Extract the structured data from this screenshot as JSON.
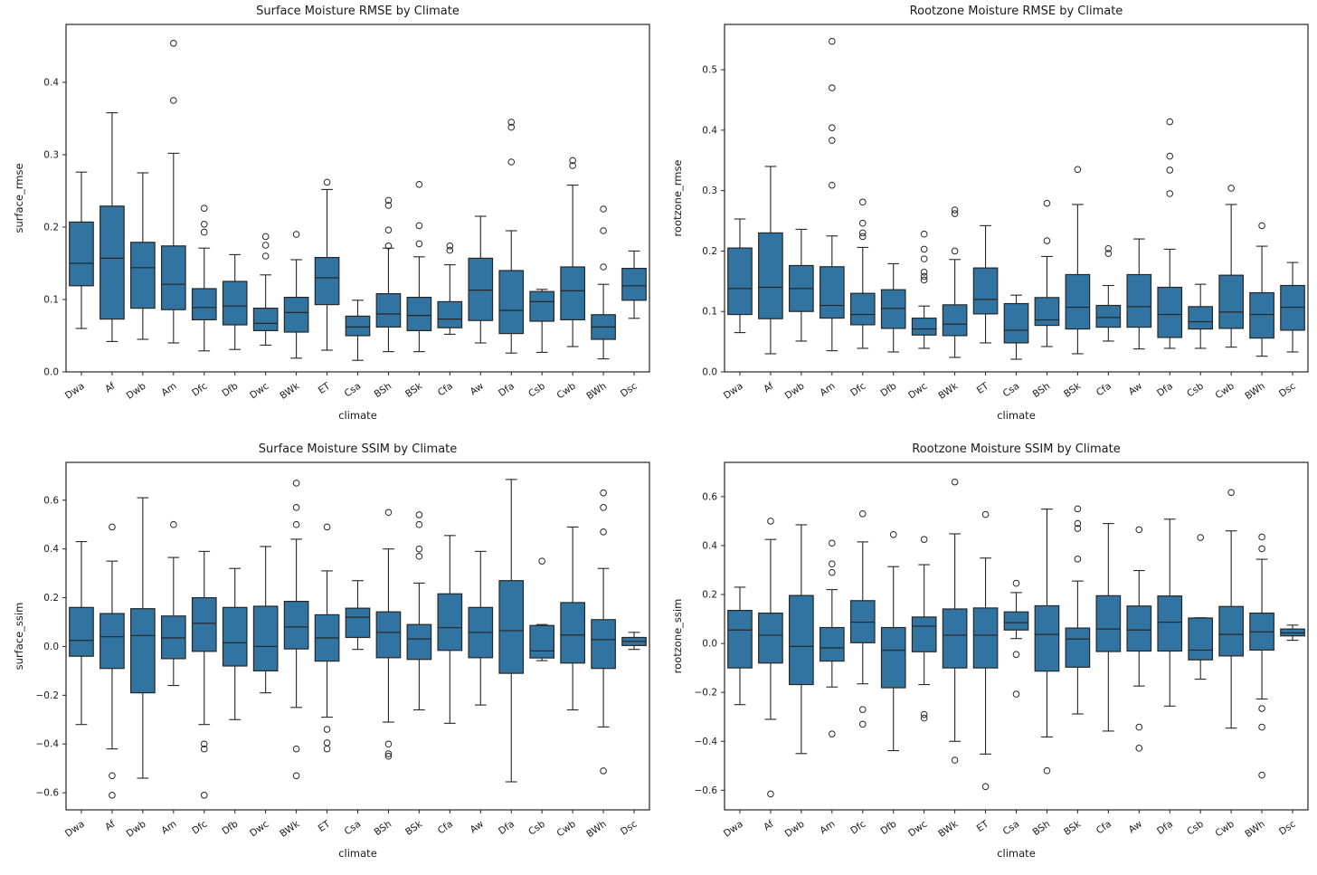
{
  "figure": {
    "background": "#ffffff",
    "box_fill": "#3274a1",
    "line_color": "#262626",
    "text_color": "#1a1a1a"
  },
  "chart_data": [
    {
      "type": "boxplot",
      "title": "Surface Moisture RMSE by Climate",
      "xlabel": "climate",
      "ylabel": "surface_rmse",
      "legend_position": "none",
      "grid": false,
      "categories": [
        "Dwa",
        "Af",
        "Dwb",
        "Am",
        "Dfc",
        "Dfb",
        "Dwc",
        "BWk",
        "ET",
        "Csa",
        "BSh",
        "BSk",
        "Cfa",
        "Aw",
        "Dfa",
        "Csb",
        "Cwb",
        "BWh",
        "Dsc"
      ],
      "ylim": [
        0,
        0.48
      ],
      "yticks": [
        0.0,
        0.1,
        0.2,
        0.3,
        0.4
      ],
      "ytick_labels": [
        "0.0",
        "0.1",
        "0.2",
        "0.3",
        "0.4"
      ],
      "boxes": [
        {
          "whislo": 0.06,
          "q1": 0.119,
          "med": 0.15,
          "q3": 0.207,
          "whishi": 0.276,
          "outliers": []
        },
        {
          "whislo": 0.042,
          "q1": 0.073,
          "med": 0.157,
          "q3": 0.229,
          "whishi": 0.358,
          "outliers": []
        },
        {
          "whislo": 0.045,
          "q1": 0.088,
          "med": 0.144,
          "q3": 0.179,
          "whishi": 0.275,
          "outliers": []
        },
        {
          "whislo": 0.04,
          "q1": 0.086,
          "med": 0.121,
          "q3": 0.174,
          "whishi": 0.302,
          "outliers": [
            0.375,
            0.454
          ]
        },
        {
          "whislo": 0.029,
          "q1": 0.072,
          "med": 0.089,
          "q3": 0.115,
          "whishi": 0.171,
          "outliers": [
            0.193,
            0.204,
            0.226
          ]
        },
        {
          "whislo": 0.031,
          "q1": 0.065,
          "med": 0.091,
          "q3": 0.125,
          "whishi": 0.162,
          "outliers": []
        },
        {
          "whislo": 0.037,
          "q1": 0.057,
          "med": 0.067,
          "q3": 0.088,
          "whishi": 0.134,
          "outliers": [
            0.16,
            0.175,
            0.187
          ]
        },
        {
          "whislo": 0.019,
          "q1": 0.055,
          "med": 0.082,
          "q3": 0.103,
          "whishi": 0.155,
          "outliers": [
            0.19
          ]
        },
        {
          "whislo": 0.03,
          "q1": 0.093,
          "med": 0.13,
          "q3": 0.158,
          "whishi": 0.252,
          "outliers": [
            0.262
          ]
        },
        {
          "whislo": 0.016,
          "q1": 0.05,
          "med": 0.062,
          "q3": 0.077,
          "whishi": 0.099,
          "outliers": []
        },
        {
          "whislo": 0.028,
          "q1": 0.062,
          "med": 0.08,
          "q3": 0.108,
          "whishi": 0.171,
          "outliers": [
            0.174,
            0.196,
            0.23,
            0.237
          ]
        },
        {
          "whislo": 0.028,
          "q1": 0.057,
          "med": 0.078,
          "q3": 0.103,
          "whishi": 0.159,
          "outliers": [
            0.177,
            0.202,
            0.259
          ]
        },
        {
          "whislo": 0.052,
          "q1": 0.061,
          "med": 0.073,
          "q3": 0.097,
          "whishi": 0.148,
          "outliers": [
            0.168,
            0.174
          ]
        },
        {
          "whislo": 0.04,
          "q1": 0.071,
          "med": 0.113,
          "q3": 0.157,
          "whishi": 0.215,
          "outliers": []
        },
        {
          "whislo": 0.026,
          "q1": 0.053,
          "med": 0.085,
          "q3": 0.14,
          "whishi": 0.195,
          "outliers": [
            0.29,
            0.338,
            0.345
          ]
        },
        {
          "whislo": 0.027,
          "q1": 0.07,
          "med": 0.097,
          "q3": 0.111,
          "whishi": 0.114,
          "outliers": []
        },
        {
          "whislo": 0.035,
          "q1": 0.072,
          "med": 0.112,
          "q3": 0.145,
          "whishi": 0.258,
          "outliers": [
            0.285,
            0.292
          ]
        },
        {
          "whislo": 0.018,
          "q1": 0.045,
          "med": 0.062,
          "q3": 0.079,
          "whishi": 0.121,
          "outliers": [
            0.145,
            0.195,
            0.225
          ]
        },
        {
          "whislo": 0.074,
          "q1": 0.099,
          "med": 0.119,
          "q3": 0.143,
          "whishi": 0.167,
          "outliers": []
        }
      ]
    },
    {
      "type": "boxplot",
      "title": "Rootzone Moisture RMSE by Climate",
      "xlabel": "climate",
      "ylabel": "rootzone_rmse",
      "legend_position": "none",
      "grid": false,
      "categories": [
        "Dwa",
        "Af",
        "Dwb",
        "Am",
        "Dfc",
        "Dfb",
        "Dwc",
        "BWk",
        "ET",
        "Csa",
        "BSh",
        "BSk",
        "Cfa",
        "Aw",
        "Dfa",
        "Csb",
        "Cwb",
        "BWh",
        "Dsc"
      ],
      "ylim": [
        0,
        0.575
      ],
      "yticks": [
        0.0,
        0.1,
        0.2,
        0.3,
        0.4,
        0.5
      ],
      "ytick_labels": [
        "0.0",
        "0.1",
        "0.2",
        "0.3",
        "0.4",
        "0.5"
      ],
      "boxes": [
        {
          "whislo": 0.065,
          "q1": 0.095,
          "med": 0.138,
          "q3": 0.205,
          "whishi": 0.253,
          "outliers": []
        },
        {
          "whislo": 0.03,
          "q1": 0.088,
          "med": 0.14,
          "q3": 0.23,
          "whishi": 0.34,
          "outliers": []
        },
        {
          "whislo": 0.051,
          "q1": 0.1,
          "med": 0.138,
          "q3": 0.176,
          "whishi": 0.236,
          "outliers": []
        },
        {
          "whislo": 0.035,
          "q1": 0.089,
          "med": 0.11,
          "q3": 0.174,
          "whishi": 0.225,
          "outliers": [
            0.309,
            0.383,
            0.404,
            0.47,
            0.547
          ]
        },
        {
          "whislo": 0.039,
          "q1": 0.078,
          "med": 0.095,
          "q3": 0.13,
          "whishi": 0.206,
          "outliers": [
            0.224,
            0.23,
            0.246,
            0.281
          ]
        },
        {
          "whislo": 0.033,
          "q1": 0.072,
          "med": 0.105,
          "q3": 0.136,
          "whishi": 0.179,
          "outliers": []
        },
        {
          "whislo": 0.039,
          "q1": 0.061,
          "med": 0.071,
          "q3": 0.089,
          "whishi": 0.109,
          "outliers": [
            0.152,
            0.158,
            0.165,
            0.187,
            0.203,
            0.228
          ]
        },
        {
          "whislo": 0.024,
          "q1": 0.06,
          "med": 0.079,
          "q3": 0.111,
          "whishi": 0.186,
          "outliers": [
            0.2,
            0.262,
            0.268
          ]
        },
        {
          "whislo": 0.048,
          "q1": 0.096,
          "med": 0.12,
          "q3": 0.172,
          "whishi": 0.242,
          "outliers": []
        },
        {
          "whislo": 0.021,
          "q1": 0.048,
          "med": 0.069,
          "q3": 0.113,
          "whishi": 0.127,
          "outliers": []
        },
        {
          "whislo": 0.042,
          "q1": 0.077,
          "med": 0.086,
          "q3": 0.123,
          "whishi": 0.191,
          "outliers": [
            0.217,
            0.279
          ]
        },
        {
          "whislo": 0.03,
          "q1": 0.071,
          "med": 0.107,
          "q3": 0.161,
          "whishi": 0.277,
          "outliers": [
            0.335
          ]
        },
        {
          "whislo": 0.051,
          "q1": 0.074,
          "med": 0.09,
          "q3": 0.11,
          "whishi": 0.143,
          "outliers": [
            0.196,
            0.204
          ]
        },
        {
          "whislo": 0.038,
          "q1": 0.074,
          "med": 0.108,
          "q3": 0.161,
          "whishi": 0.22,
          "outliers": []
        },
        {
          "whislo": 0.039,
          "q1": 0.057,
          "med": 0.095,
          "q3": 0.14,
          "whishi": 0.203,
          "outliers": [
            0.295,
            0.334,
            0.357,
            0.414
          ]
        },
        {
          "whislo": 0.039,
          "q1": 0.071,
          "med": 0.083,
          "q3": 0.108,
          "whishi": 0.145,
          "outliers": []
        },
        {
          "whislo": 0.041,
          "q1": 0.072,
          "med": 0.099,
          "q3": 0.16,
          "whishi": 0.277,
          "outliers": [
            0.304
          ]
        },
        {
          "whislo": 0.026,
          "q1": 0.056,
          "med": 0.095,
          "q3": 0.131,
          "whishi": 0.208,
          "outliers": [
            0.242
          ]
        },
        {
          "whislo": 0.033,
          "q1": 0.069,
          "med": 0.107,
          "q3": 0.143,
          "whishi": 0.181,
          "outliers": []
        }
      ]
    },
    {
      "type": "boxplot",
      "title": "Surface Moisture SSIM by Climate",
      "xlabel": "climate",
      "ylabel": "surface_ssim",
      "legend_position": "none",
      "grid": false,
      "categories": [
        "Dwa",
        "Af",
        "Dwb",
        "Am",
        "Dfc",
        "Dfb",
        "Dwc",
        "BWk",
        "ET",
        "Csa",
        "BSh",
        "BSk",
        "Cfa",
        "Aw",
        "Dfa",
        "Csb",
        "Cwb",
        "BWh",
        "Dsc"
      ],
      "ylim": [
        -0.67,
        0.755
      ],
      "yticks": [
        -0.6,
        -0.4,
        -0.2,
        0.0,
        0.2,
        0.4,
        0.6
      ],
      "ytick_labels": [
        "−0.6",
        "−0.4",
        "−0.2",
        "0.0",
        "0.2",
        "0.4",
        "0.6"
      ],
      "boxes": [
        {
          "whislo": -0.32,
          "q1": -0.04,
          "med": 0.025,
          "q3": 0.16,
          "whishi": 0.43,
          "outliers": []
        },
        {
          "whislo": -0.42,
          "q1": -0.09,
          "med": 0.04,
          "q3": 0.135,
          "whishi": 0.35,
          "outliers": [
            0.49,
            -0.53,
            -0.61
          ]
        },
        {
          "whislo": -0.54,
          "q1": -0.19,
          "med": 0.045,
          "q3": 0.155,
          "whishi": 0.61,
          "outliers": []
        },
        {
          "whislo": -0.16,
          "q1": -0.05,
          "med": 0.035,
          "q3": 0.125,
          "whishi": 0.365,
          "outliers": [
            0.5
          ]
        },
        {
          "whislo": -0.32,
          "q1": -0.02,
          "med": 0.095,
          "q3": 0.2,
          "whishi": 0.39,
          "outliers": [
            -0.4,
            -0.42,
            -0.61
          ]
        },
        {
          "whislo": -0.3,
          "q1": -0.08,
          "med": 0.015,
          "q3": 0.16,
          "whishi": 0.32,
          "outliers": []
        },
        {
          "whislo": -0.19,
          "q1": -0.1,
          "med": 0.0,
          "q3": 0.165,
          "whishi": 0.41,
          "outliers": []
        },
        {
          "whislo": -0.25,
          "q1": -0.01,
          "med": 0.08,
          "q3": 0.185,
          "whishi": 0.44,
          "outliers": [
            0.67,
            0.57,
            0.5,
            -0.42,
            -0.53
          ]
        },
        {
          "whislo": -0.29,
          "q1": -0.06,
          "med": 0.035,
          "q3": 0.13,
          "whishi": 0.31,
          "outliers": [
            0.49,
            -0.34,
            -0.395,
            -0.42
          ]
        },
        {
          "whislo": -0.012,
          "q1": 0.037,
          "med": 0.12,
          "q3": 0.157,
          "whishi": 0.27,
          "outliers": []
        },
        {
          "whislo": -0.31,
          "q1": -0.046,
          "med": 0.058,
          "q3": 0.142,
          "whishi": 0.4,
          "outliers": [
            0.55,
            -0.4,
            -0.44,
            -0.45
          ]
        },
        {
          "whislo": -0.26,
          "q1": -0.053,
          "med": 0.031,
          "q3": 0.09,
          "whishi": 0.26,
          "outliers": [
            0.54,
            0.5,
            0.4,
            0.37
          ]
        },
        {
          "whislo": -0.315,
          "q1": -0.016,
          "med": 0.077,
          "q3": 0.216,
          "whishi": 0.455,
          "outliers": []
        },
        {
          "whislo": -0.24,
          "q1": -0.046,
          "med": 0.058,
          "q3": 0.16,
          "whishi": 0.39,
          "outliers": []
        },
        {
          "whislo": -0.555,
          "q1": -0.11,
          "med": 0.065,
          "q3": 0.27,
          "whishi": 0.685,
          "outliers": []
        },
        {
          "whislo": -0.058,
          "q1": -0.047,
          "med": -0.018,
          "q3": 0.086,
          "whishi": 0.09,
          "outliers": [
            0.35
          ]
        },
        {
          "whislo": -0.26,
          "q1": -0.068,
          "med": 0.047,
          "q3": 0.18,
          "whishi": 0.49,
          "outliers": []
        },
        {
          "whislo": -0.33,
          "q1": -0.09,
          "med": 0.028,
          "q3": 0.11,
          "whishi": 0.32,
          "outliers": [
            0.63,
            0.57,
            0.47,
            -0.51
          ]
        },
        {
          "whislo": -0.012,
          "q1": 0.004,
          "med": 0.021,
          "q3": 0.037,
          "whishi": 0.058,
          "outliers": []
        }
      ]
    },
    {
      "type": "boxplot",
      "title": "Rootzone Moisture SSIM by Climate",
      "xlabel": "climate",
      "ylabel": "rootzone_ssim",
      "legend_position": "none",
      "grid": false,
      "categories": [
        "Dwa",
        "Af",
        "Dwb",
        "Am",
        "Dfc",
        "Dfb",
        "Dwc",
        "BWk",
        "ET",
        "Csa",
        "BSh",
        "BSk",
        "Cfa",
        "Aw",
        "Dfa",
        "Csb",
        "Cwb",
        "BWh",
        "Dsc"
      ],
      "ylim": [
        -0.68,
        0.74
      ],
      "yticks": [
        -0.6,
        -0.4,
        -0.2,
        0.0,
        0.2,
        0.4,
        0.6
      ],
      "ytick_labels": [
        "−0.6",
        "−0.4",
        "−0.2",
        "0.0",
        "0.2",
        "0.4",
        "0.6"
      ],
      "boxes": [
        {
          "whislo": -0.25,
          "q1": -0.1,
          "med": 0.055,
          "q3": 0.135,
          "whishi": 0.23,
          "outliers": []
        },
        {
          "whislo": -0.31,
          "q1": -0.08,
          "med": 0.034,
          "q3": 0.124,
          "whishi": 0.425,
          "outliers": [
            0.5,
            -0.615
          ]
        },
        {
          "whislo": -0.45,
          "q1": -0.168,
          "med": -0.012,
          "q3": 0.196,
          "whishi": 0.485,
          "outliers": []
        },
        {
          "whislo": -0.178,
          "q1": -0.072,
          "med": -0.018,
          "q3": 0.065,
          "whishi": 0.22,
          "outliers": [
            0.41,
            0.325,
            0.29,
            -0.37
          ]
        },
        {
          "whislo": -0.165,
          "q1": 0.003,
          "med": 0.087,
          "q3": 0.175,
          "whishi": 0.415,
          "outliers": [
            0.53,
            -0.27,
            -0.33
          ]
        },
        {
          "whislo": -0.438,
          "q1": -0.181,
          "med": -0.028,
          "q3": 0.065,
          "whishi": 0.314,
          "outliers": [
            0.445
          ]
        },
        {
          "whislo": -0.168,
          "q1": -0.034,
          "med": 0.071,
          "q3": 0.108,
          "whishi": 0.322,
          "outliers": [
            0.425,
            -0.29,
            -0.305
          ]
        },
        {
          "whislo": -0.4,
          "q1": -0.1,
          "med": 0.034,
          "q3": 0.141,
          "whishi": 0.448,
          "outliers": [
            0.66,
            -0.477
          ]
        },
        {
          "whislo": -0.452,
          "q1": -0.1,
          "med": 0.034,
          "q3": 0.145,
          "whishi": 0.349,
          "outliers": [
            0.527,
            -0.585
          ]
        },
        {
          "whislo": 0.02,
          "q1": 0.055,
          "med": 0.085,
          "q3": 0.129,
          "whishi": 0.208,
          "outliers": [
            0.246,
            -0.045,
            -0.207
          ]
        },
        {
          "whislo": -0.382,
          "q1": -0.113,
          "med": 0.037,
          "q3": 0.154,
          "whishi": 0.549,
          "outliers": [
            -0.52
          ]
        },
        {
          "whislo": -0.288,
          "q1": -0.097,
          "med": 0.018,
          "q3": 0.063,
          "whishi": 0.255,
          "outliers": [
            0.55,
            0.49,
            0.47,
            0.345
          ]
        },
        {
          "whislo": -0.358,
          "q1": -0.033,
          "med": 0.059,
          "q3": 0.195,
          "whishi": 0.49,
          "outliers": []
        },
        {
          "whislo": -0.174,
          "q1": -0.031,
          "med": 0.055,
          "q3": 0.153,
          "whishi": 0.298,
          "outliers": [
            0.465,
            -0.342,
            -0.428
          ]
        },
        {
          "whislo": -0.256,
          "q1": -0.031,
          "med": 0.087,
          "q3": 0.194,
          "whishi": 0.508,
          "outliers": []
        },
        {
          "whislo": -0.146,
          "q1": -0.067,
          "med": -0.027,
          "q3": 0.104,
          "whishi": 0.105,
          "outliers": [
            0.433
          ]
        },
        {
          "whislo": -0.346,
          "q1": -0.051,
          "med": 0.037,
          "q3": 0.151,
          "whishi": 0.46,
          "outliers": [
            0.617
          ]
        },
        {
          "whislo": -0.227,
          "q1": -0.027,
          "med": 0.047,
          "q3": 0.124,
          "whishi": 0.344,
          "outliers": [
            0.435,
            0.387,
            -0.266,
            -0.342,
            -0.538
          ]
        },
        {
          "whislo": 0.013,
          "q1": 0.031,
          "med": 0.043,
          "q3": 0.059,
          "whishi": 0.075,
          "outliers": []
        }
      ]
    }
  ]
}
